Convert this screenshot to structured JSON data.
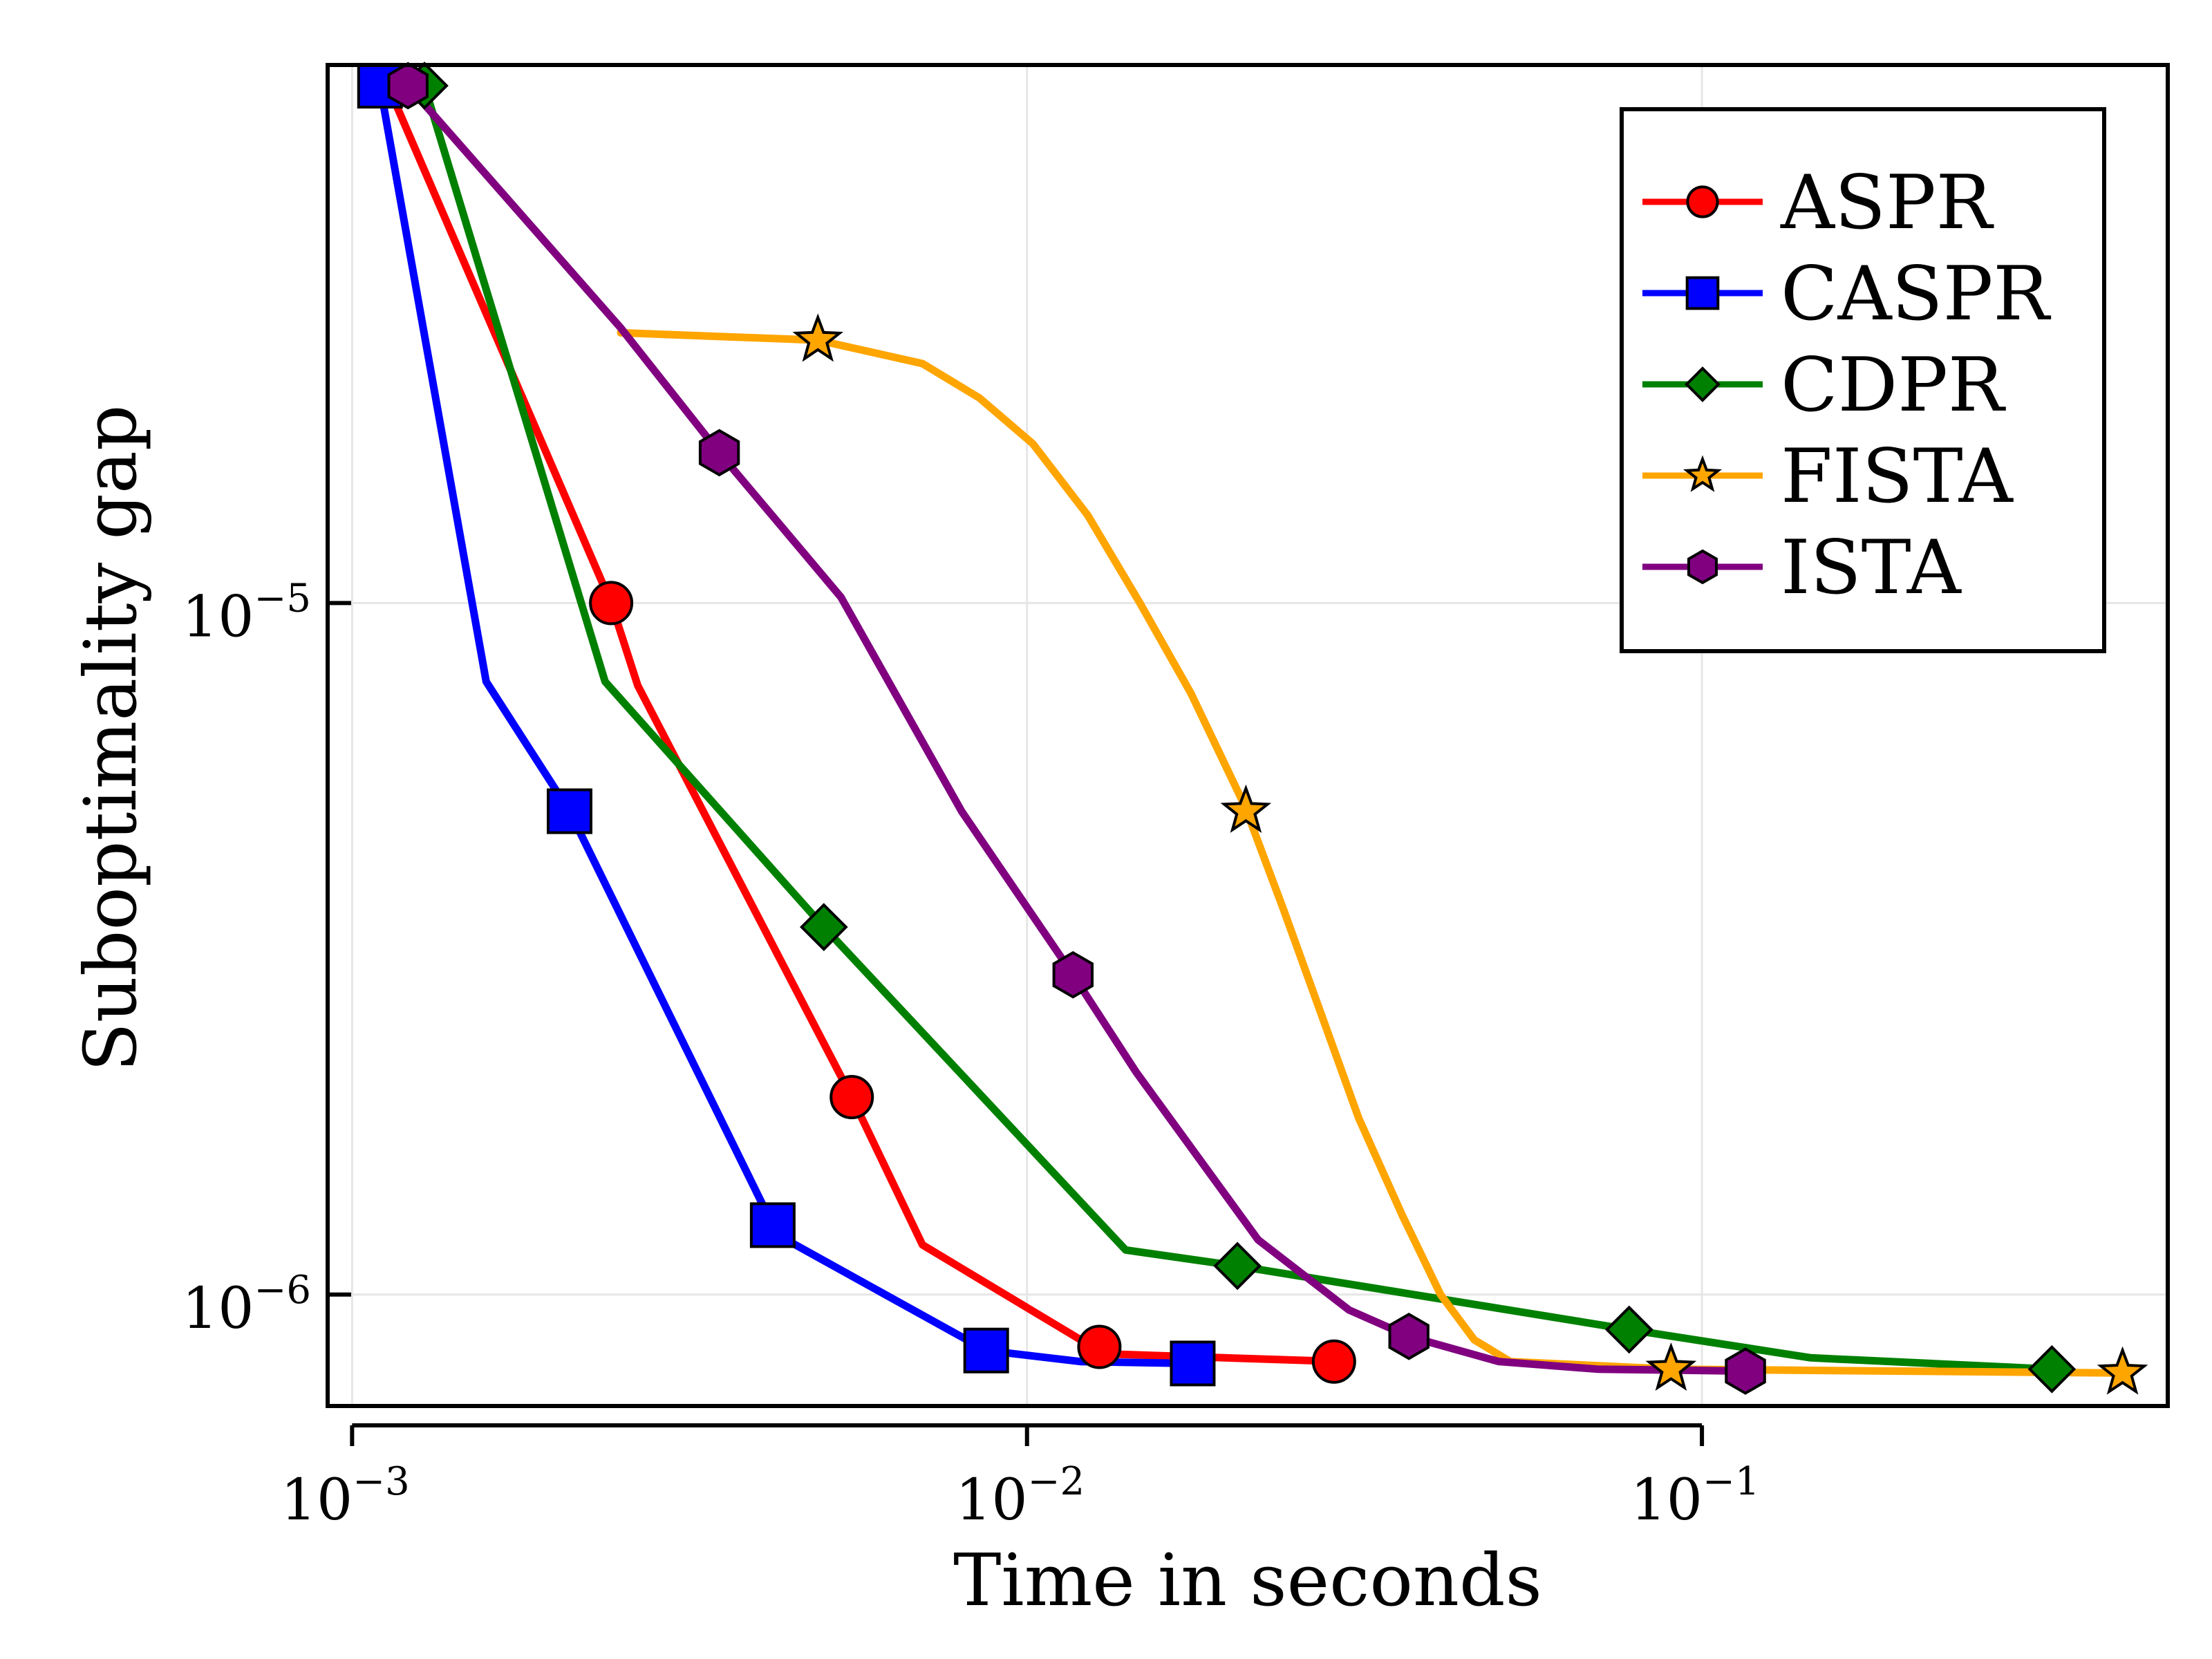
{
  "chart_data": {
    "type": "line",
    "title": "",
    "xlabel": "Time in seconds",
    "ylabel": "Suboptimality gap",
    "xscale": "log",
    "yscale": "log",
    "xlim": [
      0.00092,
      0.49
    ],
    "ylim": [
      6.9e-07,
      6e-05
    ],
    "x_ticks": [
      {
        "value": 0.001,
        "base": "10",
        "exp": "−3"
      },
      {
        "value": 0.01,
        "base": "10",
        "exp": "−2"
      },
      {
        "value": 0.1,
        "base": "10",
        "exp": "−1"
      }
    ],
    "y_ticks": [
      {
        "value": 1e-05,
        "base": "10",
        "exp": "−5"
      },
      {
        "value": 1e-06,
        "base": "10",
        "exp": "−6"
      }
    ],
    "grid": true,
    "legend_position": "top-right",
    "series": [
      {
        "name": "ASPR",
        "color": "#ff0000",
        "marker": "circle",
        "line": [
          [
            0.00113,
            5.6e-05
          ],
          [
            0.00242,
            1e-05
          ],
          [
            0.00265,
            7.6e-06
          ],
          [
            0.0055,
            1.93e-06
          ],
          [
            0.007,
            1.18e-06
          ],
          [
            0.0125,
            8.4e-07
          ],
          [
            0.0135,
            8.2e-07
          ],
          [
            0.029,
            8e-07
          ]
        ],
        "markers": [
          [
            0.00113,
            5.6e-05
          ],
          [
            0.00242,
            1e-05
          ],
          [
            0.0055,
            1.93e-06
          ],
          [
            0.0128,
            8.4e-07
          ],
          [
            0.0285,
            8e-07
          ]
        ]
      },
      {
        "name": "CASPR",
        "color": "#0000ff",
        "marker": "square",
        "line": [
          [
            0.0011,
            5.6e-05
          ],
          [
            0.00158,
            7.7e-06
          ],
          [
            0.0021,
            5e-06
          ],
          [
            0.0042,
            1.26e-06
          ],
          [
            0.0044,
            1.2e-06
          ],
          [
            0.0087,
            8.3e-07
          ],
          [
            0.012,
            8e-07
          ],
          [
            0.0176,
            7.95e-07
          ]
        ],
        "markers": [
          [
            0.0011,
            5.6e-05
          ],
          [
            0.0021,
            5e-06
          ],
          [
            0.0042,
            1.26e-06
          ],
          [
            0.0087,
            8.3e-07
          ],
          [
            0.0176,
            7.95e-07
          ]
        ]
      },
      {
        "name": "CDPR",
        "color": "#008000",
        "marker": "diamond",
        "line": [
          [
            0.00128,
            5.6e-05
          ],
          [
            0.00237,
            7.7e-06
          ],
          [
            0.005,
            3.4e-06
          ],
          [
            0.014,
            1.16e-06
          ],
          [
            0.0205,
            1.1e-06
          ],
          [
            0.078,
            8.9e-07
          ],
          [
            0.145,
            8.1e-07
          ],
          [
            0.33,
            7.8e-07
          ]
        ],
        "markers": [
          [
            0.00128,
            5.6e-05
          ],
          [
            0.005,
            3.4e-06
          ],
          [
            0.0205,
            1.1e-06
          ],
          [
            0.078,
            8.9e-07
          ],
          [
            0.33,
            7.8e-07
          ]
        ]
      },
      {
        "name": "FISTA",
        "color": "#ffa500",
        "marker": "star",
        "line": [
          [
            0.0025,
            2.46e-05
          ],
          [
            0.0049,
            2.4e-05
          ],
          [
            0.007,
            2.22e-05
          ],
          [
            0.0085,
            1.98e-05
          ],
          [
            0.0102,
            1.7e-05
          ],
          [
            0.0123,
            1.34e-05
          ],
          [
            0.0147,
            1e-05
          ],
          [
            0.0175,
            7.4e-06
          ],
          [
            0.021,
            5.1e-06
          ],
          [
            0.024,
            3.6e-06
          ],
          [
            0.031,
            1.8e-06
          ],
          [
            0.036,
            1.3e-06
          ],
          [
            0.041,
            1e-06
          ],
          [
            0.046,
            8.6e-07
          ],
          [
            0.052,
            8e-07
          ],
          [
            0.09,
            7.8e-07
          ],
          [
            0.42,
            7.7e-07
          ]
        ],
        "markers": [
          [
            0.0049,
            2.4e-05
          ],
          [
            0.0211,
            5e-06
          ],
          [
            0.09,
            7.8e-07
          ],
          [
            0.42,
            7.7e-07
          ]
        ]
      },
      {
        "name": "ISTA",
        "color": "#800080",
        "marker": "hexagon",
        "line": [
          [
            0.00121,
            5.6e-05
          ],
          [
            0.0025,
            2.5e-05
          ],
          [
            0.0035,
            1.65e-05
          ],
          [
            0.0053,
            1.02e-05
          ],
          [
            0.008,
            5e-06
          ],
          [
            0.0117,
            2.9e-06
          ],
          [
            0.0145,
            2.1e-06
          ],
          [
            0.022,
            1.2e-06
          ],
          [
            0.03,
            9.5e-07
          ],
          [
            0.0368,
            8.7e-07
          ],
          [
            0.05,
            8e-07
          ],
          [
            0.07,
            7.8e-07
          ],
          [
            0.116,
            7.75e-07
          ]
        ],
        "markers": [
          [
            0.00121,
            5.6e-05
          ],
          [
            0.0035,
            1.65e-05
          ],
          [
            0.0117,
            2.9e-06
          ],
          [
            0.0368,
            8.7e-07
          ],
          [
            0.116,
            7.75e-07
          ]
        ]
      }
    ]
  }
}
